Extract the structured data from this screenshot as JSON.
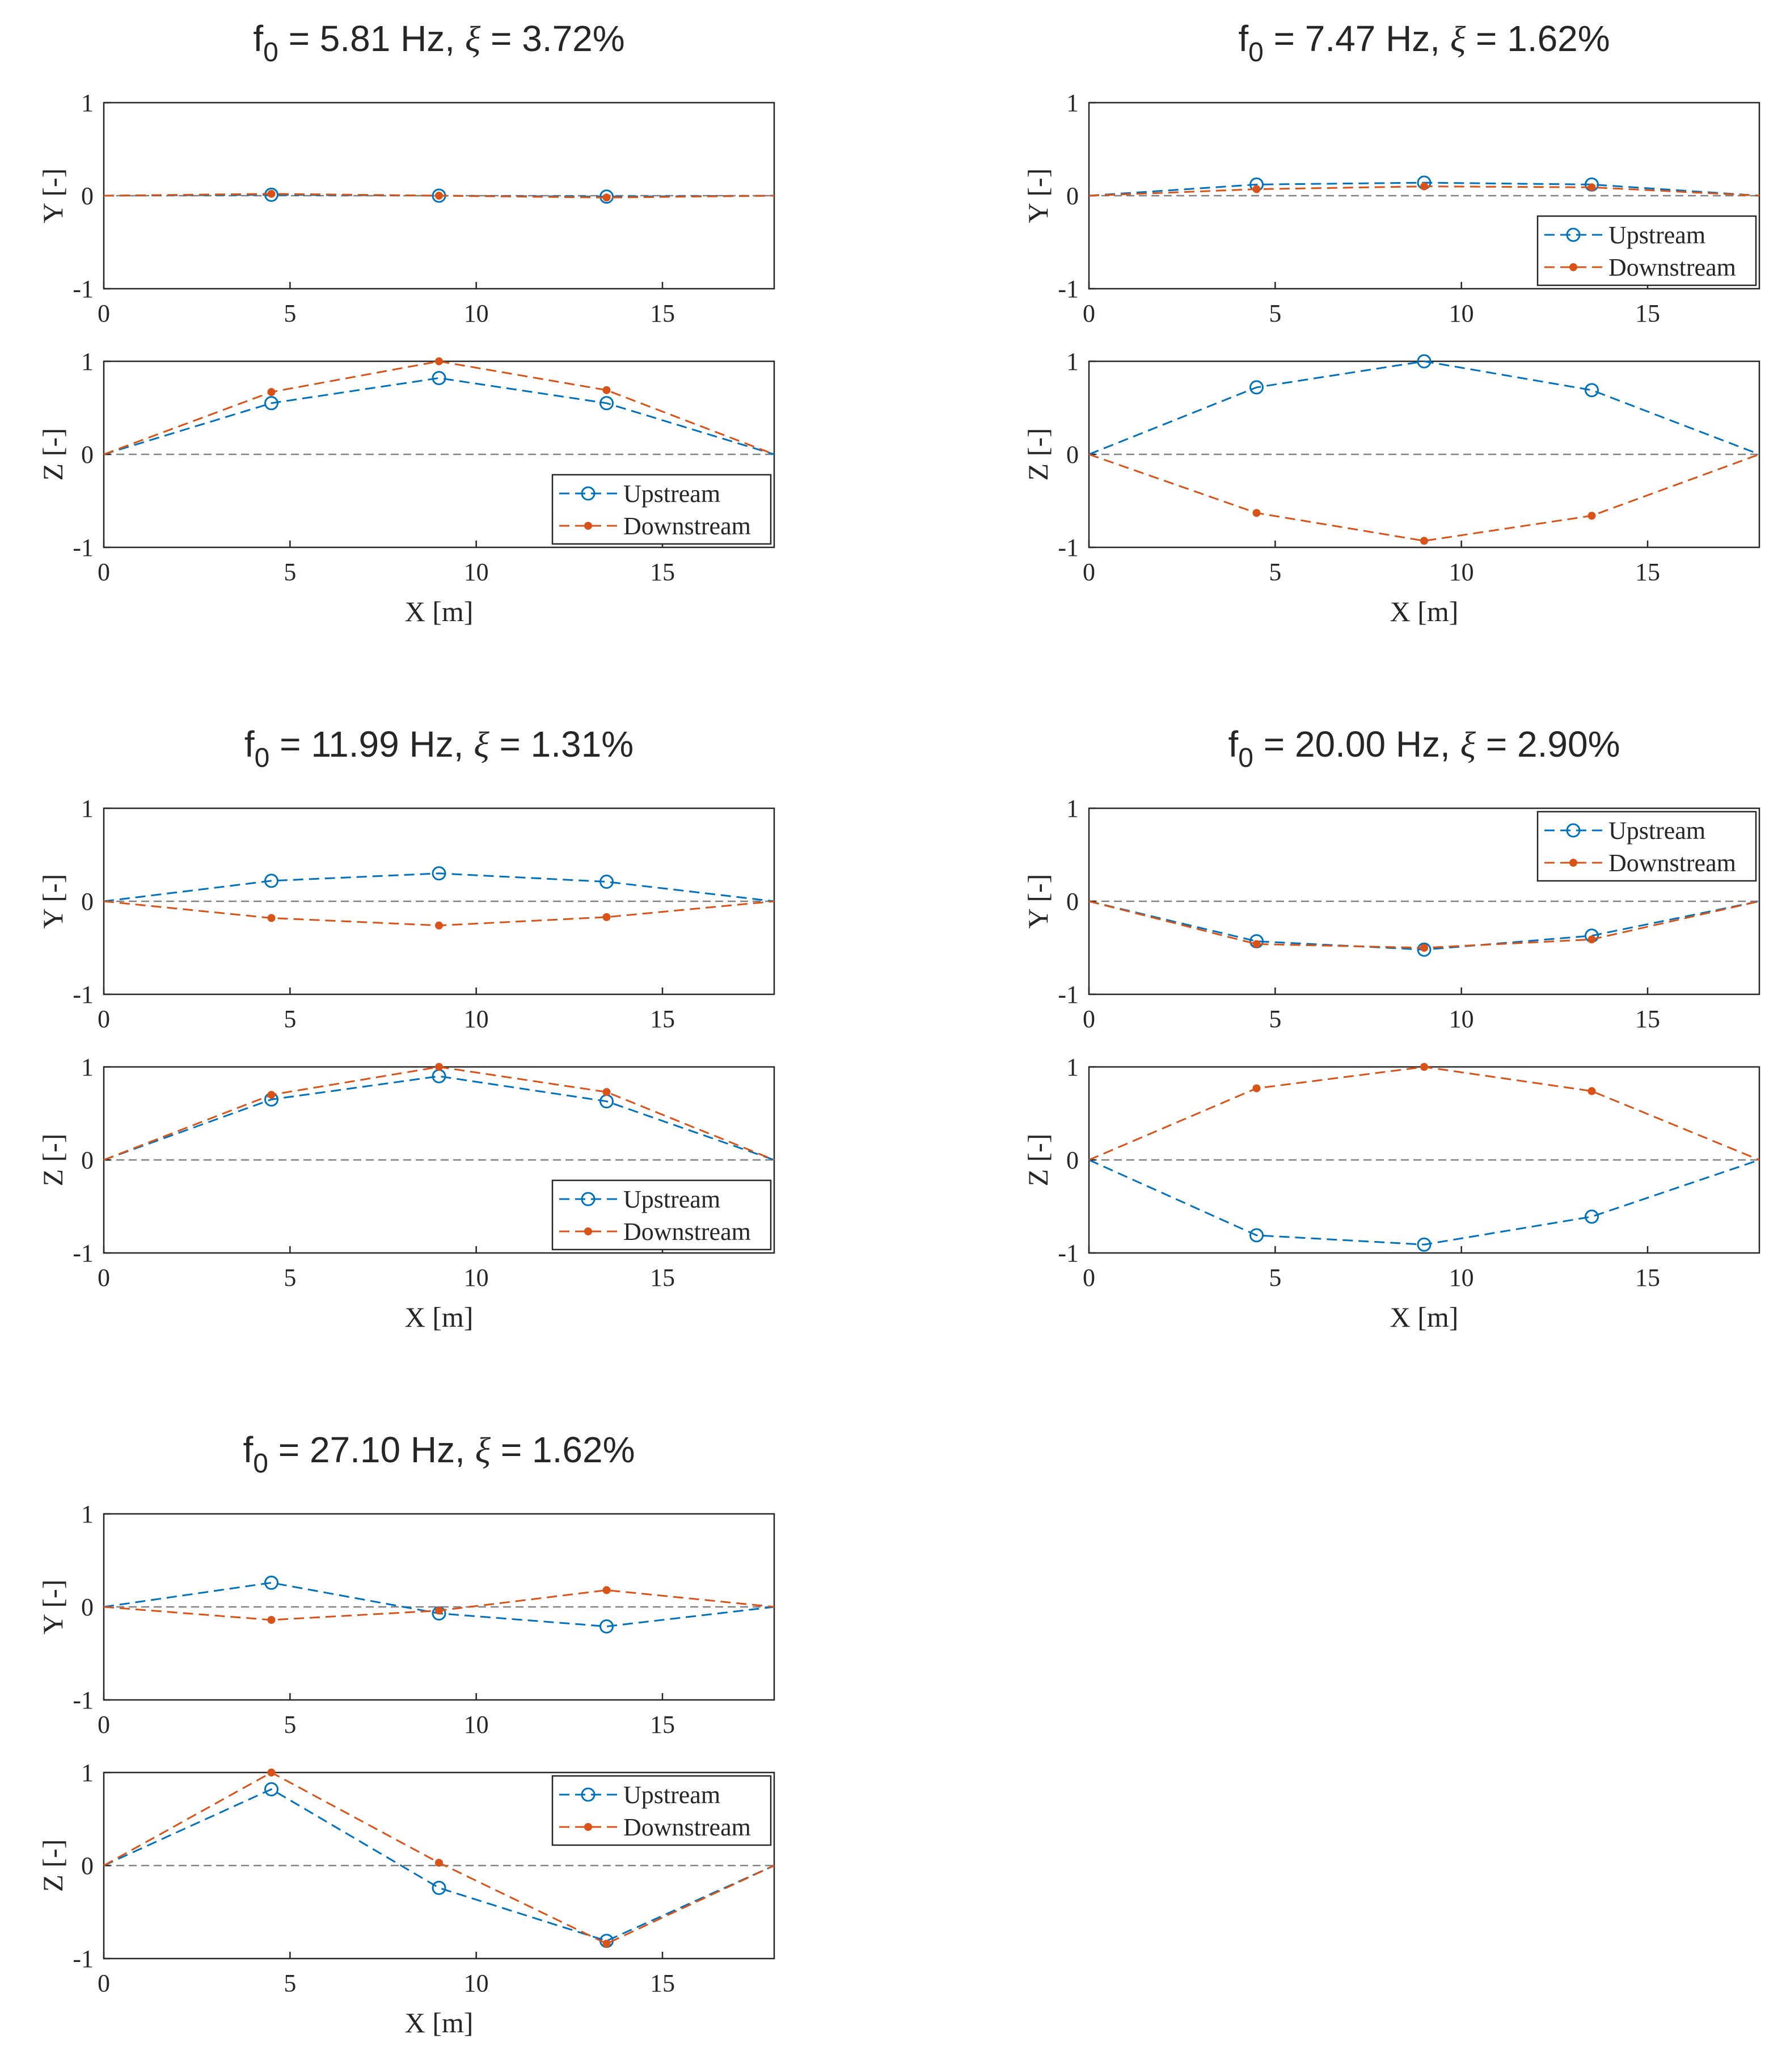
{
  "chart_data": [
    {
      "type": "line",
      "title": {
        "f_label": "f",
        "f_sub": "0",
        "freq_text": "= 5.81 Hz,",
        "xi_symbol": "ξ",
        "damping_text": "= 3.72%"
      },
      "xlabel": "X [m]",
      "xlim": [
        0,
        18
      ],
      "xticks": [
        0,
        5,
        10,
        15
      ],
      "x": [
        0,
        4.5,
        9,
        13.5,
        18
      ],
      "panels": [
        {
          "ylabel": "Y [-]",
          "ylim": [
            -1,
            1
          ],
          "yticks": [
            -1,
            0,
            1
          ],
          "series": [
            {
              "name": "Upstream",
              "values": [
                0,
                0.01,
                0.0,
                -0.01,
                0
              ]
            },
            {
              "name": "Downstream",
              "values": [
                0,
                0.02,
                0.0,
                -0.02,
                0
              ]
            }
          ],
          "legend": null
        },
        {
          "ylabel": "Z [-]",
          "ylim": [
            -1,
            1
          ],
          "yticks": [
            -1,
            0,
            1
          ],
          "series": [
            {
              "name": "Upstream",
              "values": [
                0,
                0.55,
                0.82,
                0.55,
                0
              ]
            },
            {
              "name": "Downstream",
              "values": [
                0,
                0.67,
                1.0,
                0.69,
                0
              ]
            }
          ],
          "legend": "bottom-right"
        }
      ]
    },
    {
      "type": "line",
      "title": {
        "f_label": "f",
        "f_sub": "0",
        "freq_text": "= 7.47 Hz,",
        "xi_symbol": "ξ",
        "damping_text": "= 1.62%"
      },
      "xlabel": "X [m]",
      "xlim": [
        0,
        18
      ],
      "xticks": [
        0,
        5,
        10,
        15
      ],
      "x": [
        0,
        4.5,
        9,
        13.5,
        18
      ],
      "panels": [
        {
          "ylabel": "Y [-]",
          "ylim": [
            -1,
            1
          ],
          "yticks": [
            -1,
            0,
            1
          ],
          "series": [
            {
              "name": "Upstream",
              "values": [
                0,
                0.12,
                0.14,
                0.12,
                0
              ]
            },
            {
              "name": "Downstream",
              "values": [
                0,
                0.07,
                0.1,
                0.09,
                0
              ]
            }
          ],
          "legend": "bottom-right"
        },
        {
          "ylabel": "Z [-]",
          "ylim": [
            -1,
            1
          ],
          "yticks": [
            -1,
            0,
            1
          ],
          "series": [
            {
              "name": "Upstream",
              "values": [
                0,
                0.72,
                1.0,
                0.69,
                0
              ]
            },
            {
              "name": "Downstream",
              "values": [
                0,
                -0.63,
                -0.93,
                -0.66,
                0
              ]
            }
          ],
          "legend": null
        }
      ]
    },
    {
      "type": "line",
      "title": {
        "f_label": "f",
        "f_sub": "0",
        "freq_text": "= 11.99 Hz,",
        "xi_symbol": "ξ",
        "damping_text": "= 1.31%"
      },
      "xlabel": "X [m]",
      "xlim": [
        0,
        18
      ],
      "xticks": [
        0,
        5,
        10,
        15
      ],
      "x": [
        0,
        4.5,
        9,
        13.5,
        18
      ],
      "panels": [
        {
          "ylabel": "Y [-]",
          "ylim": [
            -1,
            1
          ],
          "yticks": [
            -1,
            0,
            1
          ],
          "series": [
            {
              "name": "Upstream",
              "values": [
                0,
                0.22,
                0.3,
                0.21,
                0
              ]
            },
            {
              "name": "Downstream",
              "values": [
                0,
                -0.18,
                -0.26,
                -0.17,
                0
              ]
            }
          ],
          "legend": null
        },
        {
          "ylabel": "Z [-]",
          "ylim": [
            -1,
            1
          ],
          "yticks": [
            -1,
            0,
            1
          ],
          "series": [
            {
              "name": "Upstream",
              "values": [
                0,
                0.65,
                0.9,
                0.63,
                0
              ]
            },
            {
              "name": "Downstream",
              "values": [
                0,
                0.7,
                1.0,
                0.73,
                0
              ]
            }
          ],
          "legend": "bottom-right"
        }
      ]
    },
    {
      "type": "line",
      "title": {
        "f_label": "f",
        "f_sub": "0",
        "freq_text": "= 20.00 Hz,",
        "xi_symbol": "ξ",
        "damping_text": "= 2.90%"
      },
      "xlabel": "X [m]",
      "xlim": [
        0,
        18
      ],
      "xticks": [
        0,
        5,
        10,
        15
      ],
      "x": [
        0,
        4.5,
        9,
        13.5,
        18
      ],
      "panels": [
        {
          "ylabel": "Y [-]",
          "ylim": [
            -1,
            1
          ],
          "yticks": [
            -1,
            0,
            1
          ],
          "series": [
            {
              "name": "Upstream",
              "values": [
                0,
                -0.43,
                -0.52,
                -0.37,
                0
              ]
            },
            {
              "name": "Downstream",
              "values": [
                0,
                -0.46,
                -0.5,
                -0.41,
                0
              ]
            }
          ],
          "legend": "top-right"
        },
        {
          "ylabel": "Z [-]",
          "ylim": [
            -1,
            1
          ],
          "yticks": [
            -1,
            0,
            1
          ],
          "series": [
            {
              "name": "Upstream",
              "values": [
                0,
                -0.81,
                -0.91,
                -0.61,
                0
              ]
            },
            {
              "name": "Downstream",
              "values": [
                0,
                0.77,
                1.0,
                0.74,
                0
              ]
            }
          ],
          "legend": null
        }
      ]
    },
    {
      "type": "line",
      "title": {
        "f_label": "f",
        "f_sub": "0",
        "freq_text": "= 27.10 Hz,",
        "xi_symbol": "ξ",
        "damping_text": "= 1.62%"
      },
      "xlabel": "X [m]",
      "xlim": [
        0,
        18
      ],
      "xticks": [
        0,
        5,
        10,
        15
      ],
      "x": [
        0,
        4.5,
        9,
        13.5,
        18
      ],
      "panels": [
        {
          "ylabel": "Y [-]",
          "ylim": [
            -1,
            1
          ],
          "yticks": [
            -1,
            0,
            1
          ],
          "series": [
            {
              "name": "Upstream",
              "values": [
                0,
                0.26,
                -0.07,
                -0.21,
                0
              ]
            },
            {
              "name": "Downstream",
              "values": [
                0,
                -0.14,
                -0.04,
                0.18,
                0
              ]
            }
          ],
          "legend": null
        },
        {
          "ylabel": "Z [-]",
          "ylim": [
            -1,
            1
          ],
          "yticks": [
            -1,
            0,
            1
          ],
          "series": [
            {
              "name": "Upstream",
              "values": [
                0,
                0.82,
                -0.24,
                -0.81,
                0
              ]
            },
            {
              "name": "Downstream",
              "values": [
                0,
                1.0,
                0.03,
                -0.84,
                0
              ]
            }
          ],
          "legend": "top-right"
        }
      ]
    }
  ],
  "colors": {
    "upstream": "#0072BD",
    "downstream": "#D95319",
    "zero_line": "#808080",
    "axes": "#262626"
  }
}
